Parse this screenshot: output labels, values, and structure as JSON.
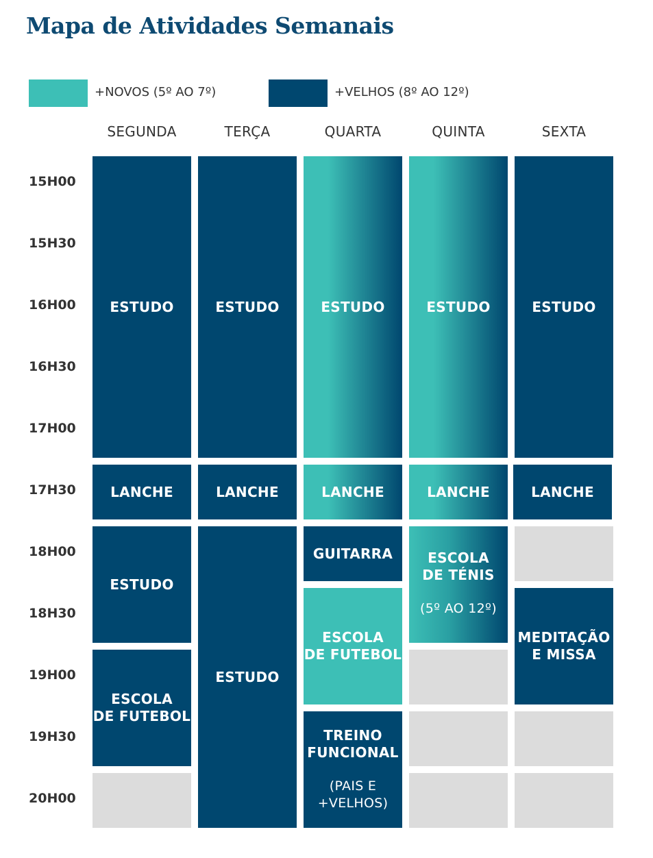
{
  "title": "Mapa de Atividades Semanais",
  "legend": [
    {
      "label": "+NOVOS (5º AO 7º)",
      "color": "#3dbfb6"
    },
    {
      "label": "+VELHOS (8º AO 12º)",
      "color": "#00476f"
    }
  ],
  "days": [
    "SEGUNDA",
    "TERÇA",
    "QUARTA",
    "QUINTA",
    "SEXTA"
  ],
  "times": [
    "15H00",
    "15H30",
    "16H00",
    "16H30",
    "17H00",
    "17H30",
    "18H00",
    "18H30",
    "19H00",
    "19H30",
    "20H00"
  ],
  "schedule": {
    "segunda": {
      "estudo1": "ESTUDO",
      "lanche": "LANCHE",
      "estudo2": "ESTUDO",
      "futebol_l1": "ESCOLA",
      "futebol_l2": "DE FUTEBOL"
    },
    "terca": {
      "estudo1": "ESTUDO",
      "lanche": "LANCHE",
      "estudo2": "ESTUDO"
    },
    "quarta": {
      "estudo1": "ESTUDO",
      "lanche": "LANCHE",
      "guitarra": "GUITARRA",
      "futebol_l1": "ESCOLA",
      "futebol_l2": "DE FUTEBOL",
      "treino_l1": "TREINO",
      "treino_l2": "FUNCIONAL",
      "treino_note_l1": "(PAIS E",
      "treino_note_l2": "+VELHOS)"
    },
    "quinta": {
      "estudo1": "ESTUDO",
      "lanche": "LANCHE",
      "tenis_l1": "ESCOLA",
      "tenis_l2": "DE TÉNIS",
      "tenis_note": "(5º AO 12º)"
    },
    "sexta": {
      "estudo1": "ESTUDO",
      "lanche": "LANCHE",
      "meditacao_l1": "MEDITAÇÃO",
      "meditacao_l2": "E MISSA"
    }
  }
}
